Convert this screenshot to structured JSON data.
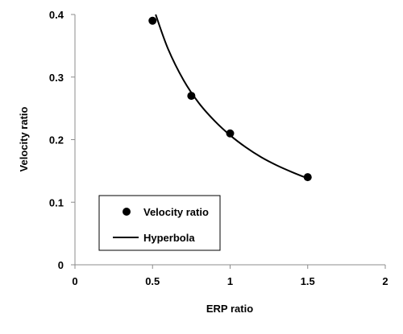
{
  "chart_data": {
    "type": "scatter",
    "xlabel": "ERP ratio",
    "ylabel": "Velocity ratio",
    "xlim": [
      0,
      2
    ],
    "ylim": [
      0,
      0.4
    ],
    "x_ticks": [
      0,
      0.5,
      1,
      1.5,
      2
    ],
    "x_tick_labels": [
      "0",
      "0.5",
      "1",
      "1.5",
      "2"
    ],
    "y_ticks": [
      0,
      0.1,
      0.2,
      0.3,
      0.4
    ],
    "y_tick_labels": [
      "0",
      "0.1",
      "0.2",
      "0.3",
      "0.4"
    ],
    "grid": false,
    "legend_position": "bottom-left",
    "series": [
      {
        "name": "Velocity ratio",
        "kind": "markers",
        "x": [
          0.5,
          0.75,
          1,
          1.5
        ],
        "y": [
          0.39,
          0.27,
          0.21,
          0.14
        ]
      },
      {
        "name": "Hyperbola",
        "kind": "line",
        "x": [
          0.52,
          0.6,
          0.7,
          0.8,
          0.9,
          1.0,
          1.1,
          1.2,
          1.3,
          1.4,
          1.5
        ],
        "y": [
          0.4,
          0.345,
          0.295,
          0.258,
          0.23,
          0.207,
          0.188,
          0.172,
          0.159,
          0.148,
          0.138
        ]
      }
    ],
    "colors": {
      "marker": "#000000",
      "line": "#000000",
      "axis": "#8c8c8c"
    }
  }
}
